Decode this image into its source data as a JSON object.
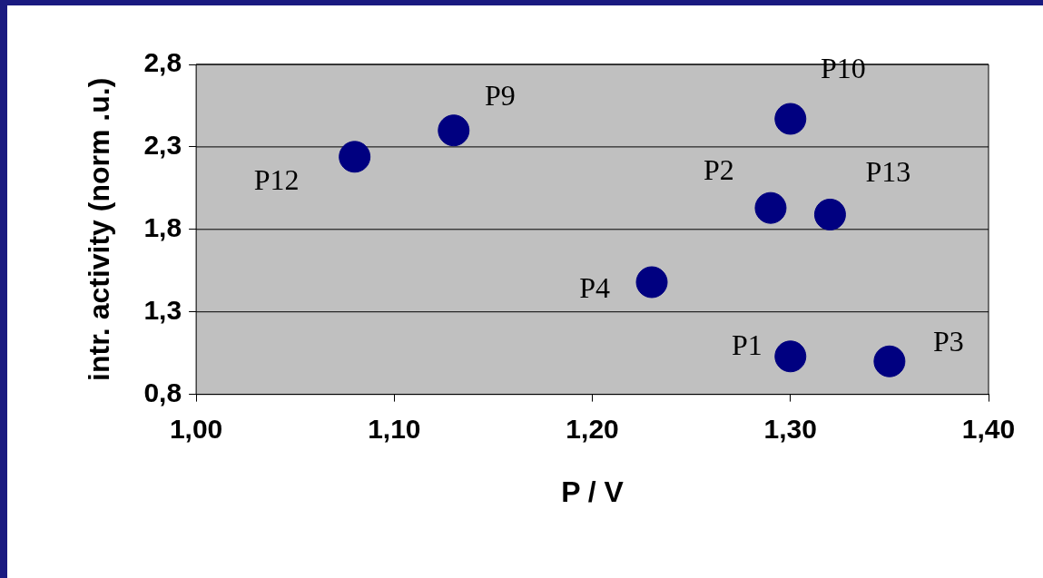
{
  "chart_data": {
    "type": "scatter",
    "xlabel": "P / V",
    "ylabel": "intr. activity (norm .u.)",
    "x": [
      1.08,
      1.13,
      1.3,
      1.29,
      1.32,
      1.23,
      1.3,
      1.35
    ],
    "values": [
      2.24,
      2.4,
      2.47,
      1.93,
      1.89,
      1.48,
      1.03,
      1.0
    ],
    "color": "#000080",
    "marker": "circle",
    "grid": "y",
    "legend": false,
    "xlim": [
      1.0,
      1.4
    ],
    "xticks": [
      {
        "value": 1.0,
        "label": "1,00"
      },
      {
        "value": 1.1,
        "label": "1,10"
      },
      {
        "value": 1.2,
        "label": "1,20"
      },
      {
        "value": 1.3,
        "label": "1,30"
      },
      {
        "value": 1.4,
        "label": "1,40"
      }
    ],
    "ylim": [
      0.8,
      2.8
    ],
    "yticks": [
      {
        "value": 0.8,
        "label": "0,8"
      },
      {
        "value": 1.3,
        "label": "1,3"
      },
      {
        "value": 1.8,
        "label": "1,8"
      },
      {
        "value": 2.3,
        "label": "2,3"
      },
      {
        "value": 2.8,
        "label": "2,8"
      }
    ],
    "annotations": [
      {
        "text": "P12",
        "x": 1.08,
        "y": 2.24
      },
      {
        "text": "P9",
        "x": 1.13,
        "y": 2.4
      },
      {
        "text": "P10",
        "x": 1.3,
        "y": 2.47
      },
      {
        "text": "P2",
        "x": 1.29,
        "y": 1.93
      },
      {
        "text": "P13",
        "x": 1.32,
        "y": 1.89
      },
      {
        "text": "P4",
        "x": 1.23,
        "y": 1.48
      },
      {
        "text": "P1",
        "x": 1.3,
        "y": 1.03
      },
      {
        "text": "P3",
        "x": 1.35,
        "y": 1.0
      }
    ]
  }
}
